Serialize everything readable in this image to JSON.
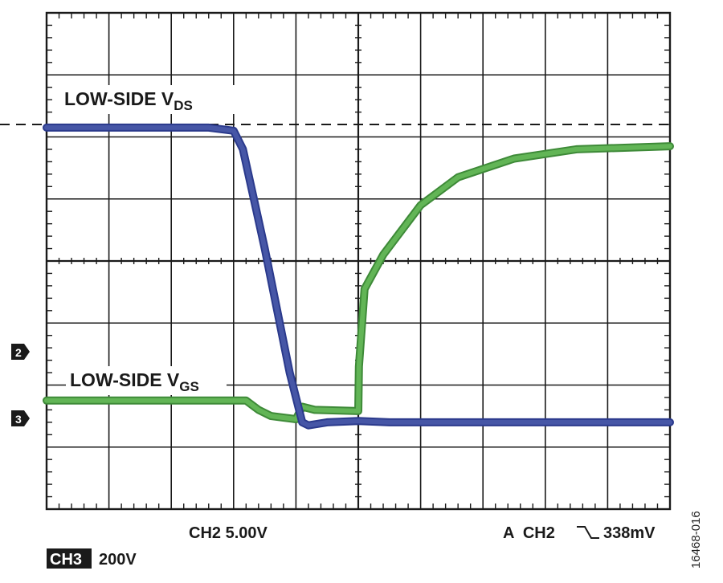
{
  "colors": {
    "vds_trace": "#4656a6",
    "vds_trace_edge": "#2b3a8c",
    "vgs_trace": "#62b556",
    "vgs_trace_edge": "#3e8a38",
    "grid": "#1a1a1a",
    "background": "#ffffff"
  },
  "labels": {
    "vds_label": "LOW-SIDE V",
    "vds_sub": "DS",
    "vgs_label": "LOW-SIDE V",
    "vgs_sub": "GS",
    "ch2_marker": "2",
    "ch3_marker": "3",
    "ch2_scale": "CH2 5.00V",
    "ch3_box": "CH3",
    "ch3_scale": "200V",
    "trigger_prefix": "A  CH2",
    "trigger_value": "338mV",
    "figure_id": "16468-016"
  },
  "chart_data": {
    "type": "line",
    "grid": true,
    "x_divisions": 10,
    "y_divisions": 8,
    "xlim": [
      0,
      10
    ],
    "ylim": [
      0,
      8
    ],
    "dashed_reference_level": 6.2,
    "series": [
      {
        "name": "LOW-SIDE VDS",
        "x": [
          0,
          2.6,
          3.0,
          3.15,
          3.5,
          3.9,
          4.1,
          4.2,
          4.5,
          5.0,
          5.5,
          7.0,
          10
        ],
        "y": [
          6.15,
          6.15,
          6.1,
          5.8,
          4.2,
          2.2,
          1.4,
          1.35,
          1.4,
          1.42,
          1.4,
          1.4,
          1.4
        ]
      },
      {
        "name": "LOW-SIDE VGS",
        "x": [
          0,
          3.2,
          3.4,
          3.6,
          4.0,
          4.1,
          4.3,
          5.0,
          5.01,
          5.1,
          5.4,
          6.0,
          6.6,
          7.5,
          8.5,
          10
        ],
        "y": [
          1.75,
          1.75,
          1.6,
          1.5,
          1.45,
          1.65,
          1.6,
          1.58,
          2.3,
          3.55,
          4.1,
          4.9,
          5.35,
          5.65,
          5.8,
          5.85
        ]
      }
    ]
  }
}
